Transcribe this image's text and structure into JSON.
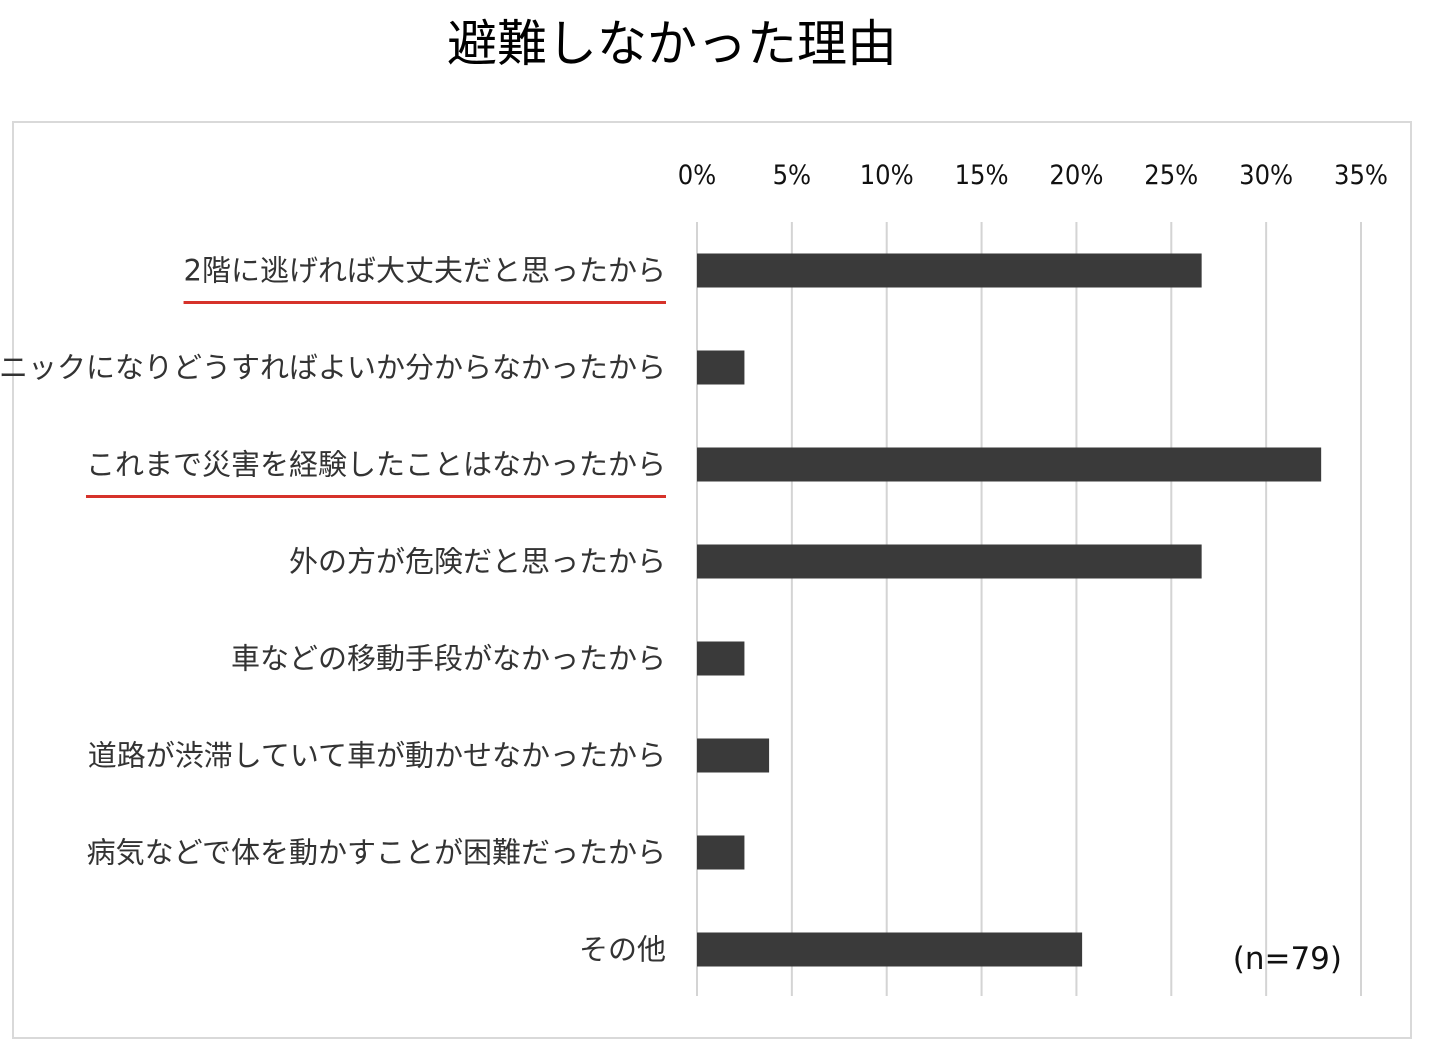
{
  "title": "避難しなかった理由",
  "chart_data": {
    "type": "bar",
    "orientation": "horizontal",
    "title": "避難しなかった理由",
    "categories": [
      "2階に逃げれば大丈夫だと思ったから",
      "パニックになりどうすればよいか分からなかったから",
      "これまで災害を経験したことはなかったから",
      "外の方が危険だと思ったから",
      "車などの移動手段がなかったから",
      "道路が渋滞していて車が動かせなかったから",
      "病気などで体を動かすことが困難だったから",
      "その他"
    ],
    "values": [
      26.6,
      2.5,
      32.9,
      26.6,
      2.5,
      3.8,
      2.5,
      20.3
    ],
    "x_ticks": [
      "0%",
      "5%",
      "10%",
      "15%",
      "20%",
      "25%",
      "30%",
      "35%"
    ],
    "xlim": [
      0,
      35
    ],
    "x_axis_position": "top",
    "grid": true,
    "bar_color": "#3a3a3a",
    "highlighted_categories": [
      0,
      2
    ],
    "highlight_color": "#d6322a",
    "annotation": "(n=79)",
    "legend": "none"
  }
}
